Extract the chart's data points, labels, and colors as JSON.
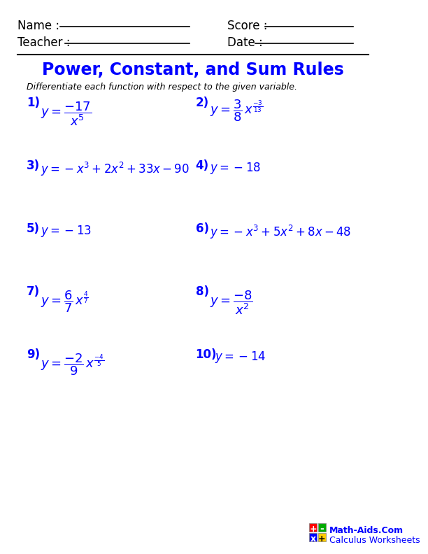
{
  "title": "Power, Constant, and Sum Rules",
  "title_color": "#0000FF",
  "subtitle": "Differentiate each function with respect to the given variable.",
  "header_color": "#000000",
  "problem_color": "#0000FF",
  "bg_color": "#FFFFFF",
  "name_label": "Name :",
  "teacher_label": "Teacher :",
  "score_label": "Score :",
  "date_label": "Date :",
  "problems": [
    {
      "num": "1)",
      "expr": "$y = \\dfrac{-17}{x^5}$"
    },
    {
      "num": "2)",
      "expr": "$y = \\dfrac{3}{8}\\,x^{\\frac{-3}{13}}$"
    },
    {
      "num": "3)",
      "expr": "$y = -x^3 + 2x^2 + 33x - 90$"
    },
    {
      "num": "4)",
      "expr": "$y = -18$"
    },
    {
      "num": "5)",
      "expr": "$y = -13$"
    },
    {
      "num": "6)",
      "expr": "$y = -x^3 + 5x^2 + 8x - 48$"
    },
    {
      "num": "7)",
      "expr": "$y = \\dfrac{6}{7}\\,x^{\\frac{4}{7}}$"
    },
    {
      "num": "8)",
      "expr": "$y = \\dfrac{-8}{x^2}$"
    },
    {
      "num": "9)",
      "expr": "$y = \\dfrac{-2}{9}\\,x^{\\frac{-4}{5}}$"
    },
    {
      "num": "10)",
      "expr": "$y = -14$"
    }
  ],
  "footer_text1": "Math-Aids.Com",
  "footer_text2": "Calculus Worksheets"
}
